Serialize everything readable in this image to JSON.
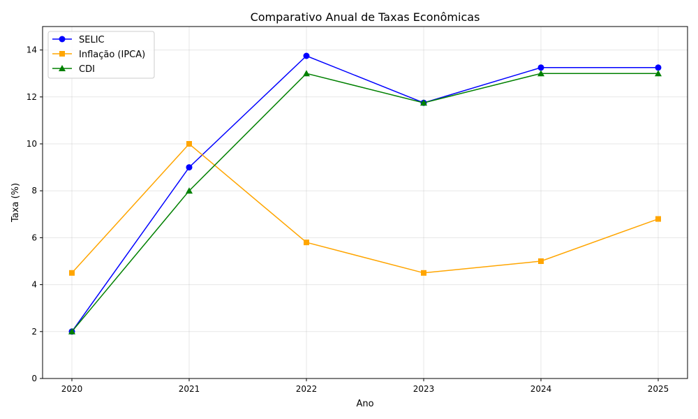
{
  "chart_data": {
    "type": "line",
    "title": "Comparativo Anual de Taxas Econômicas",
    "xlabel": "Ano",
    "ylabel": "Taxa (%)",
    "x": [
      2020,
      2021,
      2022,
      2023,
      2024,
      2025
    ],
    "x_tick_labels": [
      "2020",
      "2021",
      "2022",
      "2023",
      "2024",
      "2025"
    ],
    "xlim": [
      2019.75,
      2025.25
    ],
    "ylim": [
      0,
      15
    ],
    "y_ticks": [
      0,
      2,
      4,
      6,
      8,
      10,
      12,
      14
    ],
    "y_tick_labels": [
      "0",
      "2",
      "4",
      "6",
      "8",
      "10",
      "12",
      "14"
    ],
    "grid": true,
    "legend_position": "top-left",
    "series": [
      {
        "name": "SELIC",
        "color": "#0000ff",
        "marker": "circle",
        "values": [
          2.0,
          9.0,
          13.75,
          11.75,
          13.25,
          13.25
        ]
      },
      {
        "name": "Inflação (IPCA)",
        "color": "#ffa500",
        "marker": "square",
        "values": [
          4.5,
          10.0,
          5.8,
          4.5,
          5.0,
          6.8
        ]
      },
      {
        "name": "CDI",
        "color": "#008000",
        "marker": "triangle",
        "values": [
          2.0,
          8.0,
          13.0,
          11.75,
          13.0,
          13.0
        ]
      }
    ]
  }
}
